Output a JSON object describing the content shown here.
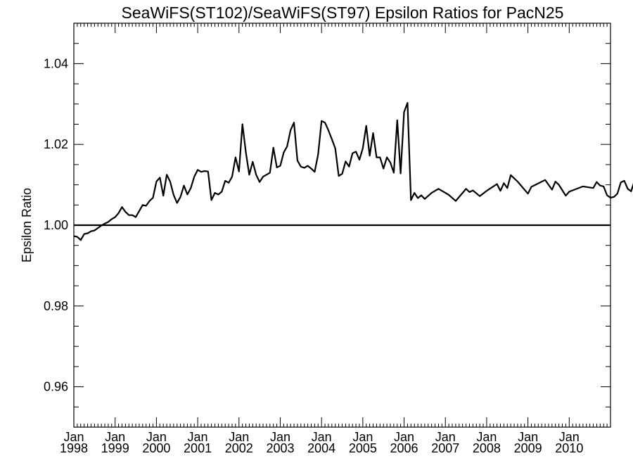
{
  "chart_data": {
    "type": "line",
    "title": "SeaWiFS(ST102)/SeaWiFS(ST97)  Epsilon Ratios for PacN25",
    "xlabel": "",
    "ylabel": "Epsilon Ratio",
    "xlim": [
      "1998-01",
      "2011-01"
    ],
    "ylim": [
      0.95,
      1.05
    ],
    "y_ticks": [
      "0.96",
      "0.98",
      "1.00",
      "1.02",
      "1.04"
    ],
    "y_tick_values": [
      0.96,
      0.98,
      1.0,
      1.02,
      1.04
    ],
    "x_ticks": [
      {
        "month": "Jan",
        "year": "1998",
        "date": "1998-01"
      },
      {
        "month": "Jan",
        "year": "1999",
        "date": "1999-01"
      },
      {
        "month": "Jan",
        "year": "2000",
        "date": "2000-01"
      },
      {
        "month": "Jan",
        "year": "2001",
        "date": "2001-01"
      },
      {
        "month": "Jan",
        "year": "2002",
        "date": "2002-01"
      },
      {
        "month": "Jan",
        "year": "2003",
        "date": "2003-01"
      },
      {
        "month": "Jan",
        "year": "2004",
        "date": "2004-01"
      },
      {
        "month": "Jan",
        "year": "2005",
        "date": "2005-01"
      },
      {
        "month": "Jan",
        "year": "2006",
        "date": "2006-01"
      },
      {
        "month": "Jan",
        "year": "2007",
        "date": "2007-01"
      },
      {
        "month": "Jan",
        "year": "2008",
        "date": "2008-01"
      },
      {
        "month": "Jan",
        "year": "2009",
        "date": "2009-01"
      },
      {
        "month": "Jan",
        "year": "2010",
        "date": "2010-01"
      }
    ],
    "reference_line": 1.0,
    "grid": false,
    "series": [
      {
        "points": [
          [
            "1998-01",
            0.9973
          ],
          [
            "1998-02",
            0.9971
          ],
          [
            "1998-03",
            0.9963
          ],
          [
            "1998-04",
            0.9978
          ],
          [
            "1998-05",
            0.998
          ],
          [
            "1998-06",
            0.9985
          ],
          [
            "1998-07",
            0.9987
          ],
          [
            "1998-08",
            0.9993
          ],
          [
            "1998-09",
            0.9999
          ],
          [
            "1998-10",
            1.0004
          ],
          [
            "1998-11",
            1.0008
          ],
          [
            "1998-12",
            1.0015
          ],
          [
            "1999-01",
            1.002
          ],
          [
            "1999-02",
            1.003
          ],
          [
            "1999-03",
            1.0045
          ],
          [
            "1999-04",
            1.0033
          ],
          [
            "1999-05",
            1.0025
          ],
          [
            "1999-06",
            1.0025
          ],
          [
            "1999-07",
            1.002
          ],
          [
            "1999-08",
            1.0035
          ],
          [
            "1999-09",
            1.005
          ],
          [
            "1999-10",
            1.0048
          ],
          [
            "1999-11",
            1.006
          ],
          [
            "1999-12",
            1.0068
          ],
          [
            "2000-01",
            1.0108
          ],
          [
            "2000-02",
            1.0118
          ],
          [
            "2000-03",
            1.0073
          ],
          [
            "2000-04",
            1.0125
          ],
          [
            "2000-05",
            1.0108
          ],
          [
            "2000-06",
            1.0075
          ],
          [
            "2000-07",
            1.0055
          ],
          [
            "2000-08",
            1.007
          ],
          [
            "2000-09",
            1.0098
          ],
          [
            "2000-10",
            1.0076
          ],
          [
            "2000-11",
            1.0092
          ],
          [
            "2000-12",
            1.012
          ],
          [
            "2001-01",
            1.0137
          ],
          [
            "2001-02",
            1.0132
          ],
          [
            "2001-03",
            1.0134
          ],
          [
            "2001-04",
            1.0133
          ],
          [
            "2001-05",
            1.0062
          ],
          [
            "2001-06",
            1.008
          ],
          [
            "2001-07",
            1.0076
          ],
          [
            "2001-08",
            1.0083
          ],
          [
            "2001-09",
            1.011
          ],
          [
            "2001-10",
            1.0105
          ],
          [
            "2001-11",
            1.012
          ],
          [
            "2001-12",
            1.0168
          ],
          [
            "2002-01",
            1.0133
          ],
          [
            "2002-02",
            1.025
          ],
          [
            "2002-03",
            1.018
          ],
          [
            "2002-04",
            1.0125
          ],
          [
            "2002-05",
            1.0157
          ],
          [
            "2002-06",
            1.0125
          ],
          [
            "2002-07",
            1.0107
          ],
          [
            "2002-08",
            1.012
          ],
          [
            "2002-09",
            1.0125
          ],
          [
            "2002-10",
            1.013
          ],
          [
            "2002-11",
            1.0192
          ],
          [
            "2002-12",
            1.0143
          ],
          [
            "2003-01",
            1.0147
          ],
          [
            "2003-02",
            1.018
          ],
          [
            "2003-03",
            1.0195
          ],
          [
            "2003-04",
            1.0235
          ],
          [
            "2003-05",
            1.0254
          ],
          [
            "2003-06",
            1.016
          ],
          [
            "2003-07",
            1.0145
          ],
          [
            "2003-08",
            1.0142
          ],
          [
            "2003-09",
            1.0147
          ],
          [
            "2003-10",
            1.014
          ],
          [
            "2003-11",
            1.0132
          ],
          [
            "2003-12",
            1.0175
          ],
          [
            "2004-01",
            1.0258
          ],
          [
            "2004-02",
            1.0254
          ],
          [
            "2004-03",
            1.0235
          ],
          [
            "2004-04",
            1.0213
          ],
          [
            "2004-05",
            1.019
          ],
          [
            "2004-06",
            1.0122
          ],
          [
            "2004-07",
            1.0127
          ],
          [
            "2004-08",
            1.0158
          ],
          [
            "2004-09",
            1.0145
          ],
          [
            "2004-10",
            1.0178
          ],
          [
            "2004-11",
            1.0182
          ],
          [
            "2004-12",
            1.0162
          ],
          [
            "2005-01",
            1.019
          ],
          [
            "2005-02",
            1.0246
          ],
          [
            "2005-03",
            1.0172
          ],
          [
            "2005-04",
            1.0228
          ],
          [
            "2005-05",
            1.0168
          ],
          [
            "2005-06",
            1.0168
          ],
          [
            "2005-07",
            1.014
          ],
          [
            "2005-08",
            1.0168
          ],
          [
            "2005-09",
            1.0155
          ],
          [
            "2005-10",
            1.013
          ],
          [
            "2005-11",
            1.026
          ],
          [
            "2005-12",
            1.0128
          ],
          [
            "2006-01",
            1.028
          ],
          [
            "2006-02",
            1.0303
          ],
          [
            "2006-03",
            1.0062
          ],
          [
            "2006-04",
            1.008
          ],
          [
            "2006-05",
            1.0067
          ],
          [
            "2006-06",
            1.0074
          ],
          [
            "2006-07",
            1.0065
          ],
          [
            "2006-09",
            1.008
          ],
          [
            "2006-11",
            1.009
          ],
          [
            "2007-02",
            1.0075
          ],
          [
            "2007-04",
            1.006
          ],
          [
            "2007-06",
            1.008
          ],
          [
            "2007-07",
            1.009
          ],
          [
            "2007-08",
            1.0082
          ],
          [
            "2007-09",
            1.0086
          ],
          [
            "2007-11",
            1.0072
          ],
          [
            "2008-01",
            1.0085
          ],
          [
            "2008-04",
            1.0102
          ],
          [
            "2008-05",
            1.0085
          ],
          [
            "2008-06",
            1.0104
          ],
          [
            "2008-07",
            1.0092
          ],
          [
            "2008-08",
            1.0124
          ],
          [
            "2008-10",
            1.0108
          ],
          [
            "2009-01",
            1.0078
          ],
          [
            "2009-02",
            1.0095
          ],
          [
            "2009-06",
            1.0112
          ],
          [
            "2009-08",
            1.0088
          ],
          [
            "2009-09",
            1.0108
          ],
          [
            "2009-10",
            1.01
          ],
          [
            "2009-12",
            1.0073
          ],
          [
            "2010-01",
            1.0083
          ],
          [
            "2010-05",
            1.0096
          ],
          [
            "2010-08",
            1.0092
          ],
          [
            "2010-09",
            1.0107
          ],
          [
            "2010-10",
            1.0098
          ],
          [
            "2010-11",
            1.0096
          ],
          [
            "2010-12",
            1.0074
          ],
          [
            "2011-01",
            1.0068
          ],
          [
            "2011-02",
            1.007
          ],
          [
            "2011-03",
            1.0078
          ],
          [
            "2011-04",
            1.0106
          ],
          [
            "2011-05",
            1.011
          ],
          [
            "2011-06",
            1.009
          ],
          [
            "2011-07",
            1.0084
          ],
          [
            "2011-08",
            1.011
          ]
        ],
        "color": "#000000"
      }
    ]
  }
}
